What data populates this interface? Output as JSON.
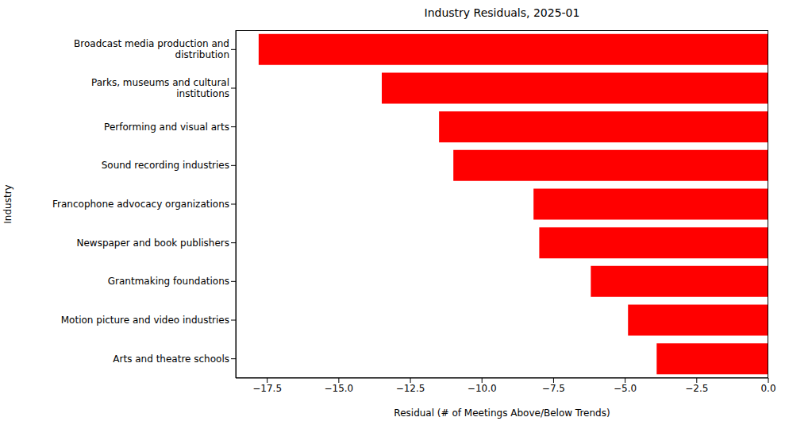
{
  "chart_data": {
    "type": "bar",
    "orientation": "horizontal",
    "title": "Industry Residuals, 2025-01",
    "x_label": "Residual (# of Meetings Above/Below Trends)",
    "y_label": "Industry",
    "categories": [
      "Broadcast media production and\ndistribution",
      "Parks, museums and cultural\ninstitutions",
      "Performing and visual arts",
      "Sound recording industries",
      "Francophone advocacy organizations",
      "Newspaper and book publishers",
      "Grantmaking foundations",
      "Motion picture and video industries",
      "Arts and theatre schools"
    ],
    "values": [
      -17.8,
      -13.5,
      -11.5,
      -11.0,
      -8.2,
      -8.0,
      -6.2,
      -4.9,
      -3.9
    ],
    "color": "#ff0000",
    "xlim": [
      -18.6,
      0
    ],
    "xticks": [
      {
        "value": -17.5,
        "label": "−17.5"
      },
      {
        "value": -15,
        "label": "−15.0"
      },
      {
        "value": -12.5,
        "label": "−12.5"
      },
      {
        "value": -10,
        "label": "−10.0"
      },
      {
        "value": -7.5,
        "label": "−7.5"
      },
      {
        "value": -5,
        "label": "−5.0"
      },
      {
        "value": -2.5,
        "label": "−2.5"
      },
      {
        "value": 0,
        "label": "0.0"
      }
    ],
    "grid": false
  }
}
